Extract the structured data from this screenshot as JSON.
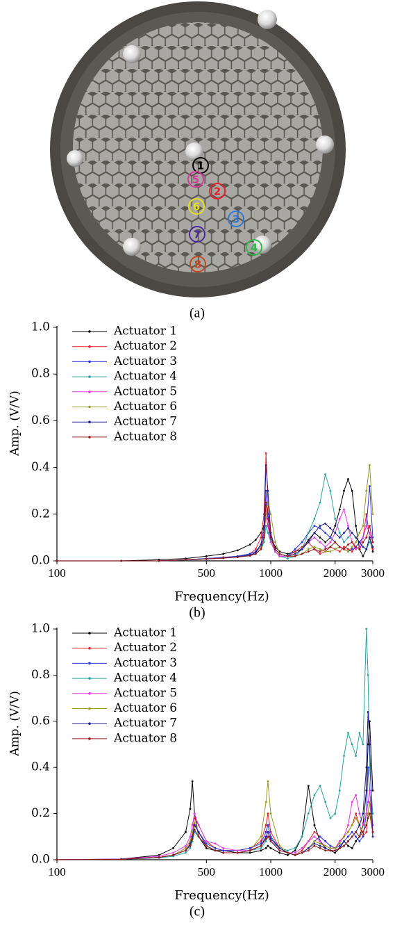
{
  "photo": {
    "labels": [
      "1",
      "2",
      "3",
      "4",
      "5",
      "6",
      "7",
      "8"
    ],
    "caption": "(a)"
  },
  "chart_data": [
    {
      "type": "line",
      "caption": "(b)",
      "x_label": "Frequency(Hz)",
      "y_label": "Amp. (V/V)",
      "xscale": "log",
      "legend": "upper left",
      "xlim": [
        100,
        3000
      ],
      "xticks": [
        100,
        500,
        1000,
        2000,
        3000
      ],
      "ylim": [
        0,
        1
      ],
      "yticks": [
        {
          "value": 0,
          "label": "0.0"
        },
        0.2,
        0.4,
        0.6,
        0.8,
        {
          "value": 1,
          "label": "1.0"
        }
      ],
      "x": [
        100,
        200,
        300,
        400,
        500,
        600,
        700,
        800,
        850,
        900,
        930,
        950,
        970,
        1000,
        1050,
        1100,
        1200,
        1300,
        1400,
        1500,
        1600,
        1700,
        1800,
        1900,
        2000,
        2100,
        2200,
        2300,
        2400,
        2500,
        2600,
        2700,
        2800,
        2900,
        3000
      ],
      "series": [
        {
          "name": "Actuator 1",
          "color": "#000000",
          "values": [
            0,
            0,
            0.005,
            0.01,
            0.02,
            0.03,
            0.045,
            0.07,
            0.09,
            0.12,
            0.15,
            0.2,
            0.15,
            0.1,
            0.06,
            0.04,
            0.03,
            0.04,
            0.05,
            0.09,
            0.12,
            0.1,
            0.08,
            0.1,
            0.15,
            0.22,
            0.3,
            0.35,
            0.3,
            0.15,
            0.05,
            0.02,
            0.05,
            0.1,
            0.04
          ]
        },
        {
          "name": "Actuator 2",
          "color": "#e8202a",
          "values": [
            0,
            0,
            0,
            0.005,
            0.01,
            0.015,
            0.02,
            0.03,
            0.05,
            0.1,
            0.2,
            0.46,
            0.25,
            0.1,
            0.04,
            0.02,
            0.02,
            0.04,
            0.06,
            0.08,
            0.05,
            0.03,
            0.04,
            0.06,
            0.05,
            0.04,
            0.06,
            0.05,
            0.04,
            0.06,
            0.08,
            0.1,
            0.2,
            0.1,
            0.05
          ]
        },
        {
          "name": "Actuator 3",
          "color": "#2633e0",
          "values": [
            0,
            0,
            0,
            0.005,
            0.01,
            0.015,
            0.02,
            0.03,
            0.04,
            0.07,
            0.12,
            0.3,
            0.2,
            0.08,
            0.04,
            0.02,
            0.02,
            0.05,
            0.08,
            0.12,
            0.15,
            0.14,
            0.12,
            0.1,
            0.08,
            0.06,
            0.05,
            0.04,
            0.05,
            0.06,
            0.08,
            0.1,
            0.15,
            0.32,
            0.1
          ]
        },
        {
          "name": "Actuator 4",
          "color": "#2aa3a0",
          "values": [
            0,
            0,
            0,
            0.003,
            0.008,
            0.012,
            0.018,
            0.025,
            0.03,
            0.05,
            0.08,
            0.15,
            0.12,
            0.08,
            0.04,
            0.02,
            0.01,
            0.02,
            0.05,
            0.12,
            0.18,
            0.25,
            0.37,
            0.3,
            0.18,
            0.12,
            0.08,
            0.1,
            0.12,
            0.1,
            0.08,
            0.06,
            0.05,
            0.08,
            0.06
          ]
        },
        {
          "name": "Actuator 5",
          "color": "#e236e2",
          "values": [
            0,
            0,
            0,
            0.004,
            0.008,
            0.012,
            0.016,
            0.025,
            0.035,
            0.06,
            0.1,
            0.2,
            0.15,
            0.08,
            0.04,
            0.02,
            0.02,
            0.03,
            0.05,
            0.08,
            0.1,
            0.08,
            0.06,
            0.08,
            0.12,
            0.18,
            0.22,
            0.15,
            0.08,
            0.05,
            0.06,
            0.1,
            0.15,
            0.12,
            0.08
          ]
        },
        {
          "name": "Actuator 6",
          "color": "#9c9a1e",
          "values": [
            0,
            0,
            0,
            0.004,
            0.008,
            0.012,
            0.018,
            0.025,
            0.035,
            0.06,
            0.1,
            0.2,
            0.25,
            0.2,
            0.08,
            0.03,
            0.02,
            0.02,
            0.03,
            0.05,
            0.06,
            0.05,
            0.04,
            0.04,
            0.05,
            0.06,
            0.05,
            0.04,
            0.06,
            0.08,
            0.12,
            0.15,
            0.3,
            0.41,
            0.2
          ]
        },
        {
          "name": "Actuator 7",
          "color": "#1e1e94",
          "values": [
            0,
            0,
            0,
            0.004,
            0.008,
            0.012,
            0.018,
            0.025,
            0.035,
            0.07,
            0.15,
            0.41,
            0.3,
            0.12,
            0.05,
            0.03,
            0.02,
            0.03,
            0.05,
            0.08,
            0.12,
            0.15,
            0.16,
            0.14,
            0.12,
            0.1,
            0.12,
            0.14,
            0.12,
            0.1,
            0.08,
            0.06,
            0.05,
            0.1,
            0.06
          ]
        },
        {
          "name": "Actuator 8",
          "color": "#921818",
          "values": [
            0,
            0,
            0,
            0.004,
            0.008,
            0.012,
            0.016,
            0.022,
            0.03,
            0.05,
            0.1,
            0.25,
            0.18,
            0.1,
            0.05,
            0.03,
            0.02,
            0.02,
            0.03,
            0.04,
            0.05,
            0.04,
            0.05,
            0.06,
            0.08,
            0.06,
            0.05,
            0.07,
            0.08,
            0.06,
            0.05,
            0.08,
            0.1,
            0.15,
            0.08
          ]
        }
      ]
    },
    {
      "type": "line",
      "caption": "(c)",
      "x_label": "Frequency(Hz)",
      "y_label": "Amp. (V/V)",
      "xscale": "log",
      "legend": "upper left",
      "xlim": [
        100,
        3000
      ],
      "xticks": [
        100,
        500,
        1000,
        2000,
        3000
      ],
      "ylim": [
        0,
        1
      ],
      "yticks": [
        {
          "value": 0,
          "label": "0.0"
        },
        0.2,
        0.4,
        0.6,
        0.8,
        {
          "value": 1,
          "label": "1.0"
        }
      ],
      "x": [
        100,
        200,
        300,
        350,
        400,
        420,
        430,
        440,
        460,
        500,
        550,
        600,
        700,
        800,
        900,
        950,
        970,
        1000,
        1100,
        1200,
        1300,
        1400,
        1500,
        1600,
        1700,
        1800,
        1900,
        2000,
        2100,
        2200,
        2300,
        2400,
        2500,
        2600,
        2700,
        2800,
        2850,
        2900,
        3000
      ],
      "series": [
        {
          "name": "Actuator 1",
          "color": "#000000",
          "values": [
            0,
            0.003,
            0.02,
            0.05,
            0.12,
            0.22,
            0.34,
            0.2,
            0.1,
            0.05,
            0.04,
            0.04,
            0.03,
            0.03,
            0.04,
            0.05,
            0.06,
            0.05,
            0.03,
            0.02,
            0.04,
            0.1,
            0.32,
            0.15,
            0.08,
            0.05,
            0.04,
            0.03,
            0.05,
            0.08,
            0.06,
            0.05,
            0.08,
            0.1,
            0.15,
            0.3,
            0.5,
            0.6,
            0.3
          ]
        },
        {
          "name": "Actuator 2",
          "color": "#e8202a",
          "values": [
            0,
            0.002,
            0.01,
            0.02,
            0.05,
            0.08,
            0.12,
            0.18,
            0.15,
            0.08,
            0.05,
            0.04,
            0.04,
            0.05,
            0.08,
            0.15,
            0.2,
            0.12,
            0.05,
            0.03,
            0.02,
            0.04,
            0.08,
            0.12,
            0.1,
            0.08,
            0.06,
            0.05,
            0.08,
            0.1,
            0.12,
            0.15,
            0.2,
            0.15,
            0.1,
            0.12,
            0.2,
            0.25,
            0.15
          ]
        },
        {
          "name": "Actuator 3",
          "color": "#2633e0",
          "values": [
            0,
            0.002,
            0.01,
            0.02,
            0.04,
            0.06,
            0.1,
            0.15,
            0.12,
            0.07,
            0.05,
            0.04,
            0.04,
            0.05,
            0.07,
            0.12,
            0.15,
            0.1,
            0.05,
            0.03,
            0.02,
            0.03,
            0.05,
            0.08,
            0.1,
            0.08,
            0.06,
            0.05,
            0.06,
            0.08,
            0.1,
            0.12,
            0.1,
            0.08,
            0.1,
            0.2,
            0.4,
            0.3,
            0.12
          ]
        },
        {
          "name": "Actuator 4",
          "color": "#2aa3a0",
          "values": [
            0,
            0.002,
            0.008,
            0.015,
            0.03,
            0.05,
            0.08,
            0.12,
            0.1,
            0.06,
            0.04,
            0.03,
            0.03,
            0.04,
            0.05,
            0.08,
            0.1,
            0.08,
            0.05,
            0.04,
            0.05,
            0.1,
            0.2,
            0.28,
            0.32,
            0.25,
            0.18,
            0.2,
            0.3,
            0.45,
            0.55,
            0.5,
            0.45,
            0.55,
            0.5,
            1.0,
            0.8,
            0.4,
            0.2
          ]
        },
        {
          "name": "Actuator 5",
          "color": "#e236e2",
          "values": [
            0,
            0.003,
            0.015,
            0.03,
            0.06,
            0.1,
            0.15,
            0.2,
            0.15,
            0.08,
            0.07,
            0.05,
            0.04,
            0.04,
            0.06,
            0.1,
            0.12,
            0.08,
            0.04,
            0.03,
            0.03,
            0.05,
            0.08,
            0.1,
            0.08,
            0.06,
            0.05,
            0.05,
            0.08,
            0.1,
            0.15,
            0.25,
            0.28,
            0.2,
            0.15,
            0.2,
            0.25,
            0.3,
            0.15
          ]
        },
        {
          "name": "Actuator 6",
          "color": "#9c9a1e",
          "values": [
            0,
            0.002,
            0.01,
            0.02,
            0.05,
            0.08,
            0.12,
            0.16,
            0.12,
            0.06,
            0.04,
            0.03,
            0.03,
            0.04,
            0.1,
            0.25,
            0.34,
            0.2,
            0.06,
            0.03,
            0.02,
            0.03,
            0.05,
            0.08,
            0.07,
            0.06,
            0.05,
            0.05,
            0.07,
            0.1,
            0.12,
            0.15,
            0.18,
            0.15,
            0.12,
            0.15,
            0.2,
            0.25,
            0.1
          ]
        },
        {
          "name": "Actuator 7",
          "color": "#1e1e94",
          "values": [
            0,
            0.002,
            0.01,
            0.02,
            0.04,
            0.07,
            0.1,
            0.15,
            0.12,
            0.06,
            0.04,
            0.03,
            0.03,
            0.04,
            0.06,
            0.1,
            0.12,
            0.09,
            0.05,
            0.03,
            0.02,
            0.03,
            0.05,
            0.07,
            0.06,
            0.05,
            0.04,
            0.04,
            0.05,
            0.06,
            0.08,
            0.1,
            0.12,
            0.15,
            0.2,
            0.4,
            0.64,
            0.5,
            0.1
          ]
        },
        {
          "name": "Actuator 8",
          "color": "#921818",
          "values": [
            0,
            0.002,
            0.01,
            0.02,
            0.04,
            0.06,
            0.09,
            0.13,
            0.1,
            0.06,
            0.04,
            0.03,
            0.03,
            0.04,
            0.06,
            0.09,
            0.1,
            0.08,
            0.04,
            0.03,
            0.02,
            0.03,
            0.04,
            0.06,
            0.05,
            0.04,
            0.04,
            0.04,
            0.05,
            0.06,
            0.08,
            0.1,
            0.12,
            0.1,
            0.12,
            0.15,
            0.18,
            0.2,
            0.12
          ]
        }
      ]
    }
  ]
}
